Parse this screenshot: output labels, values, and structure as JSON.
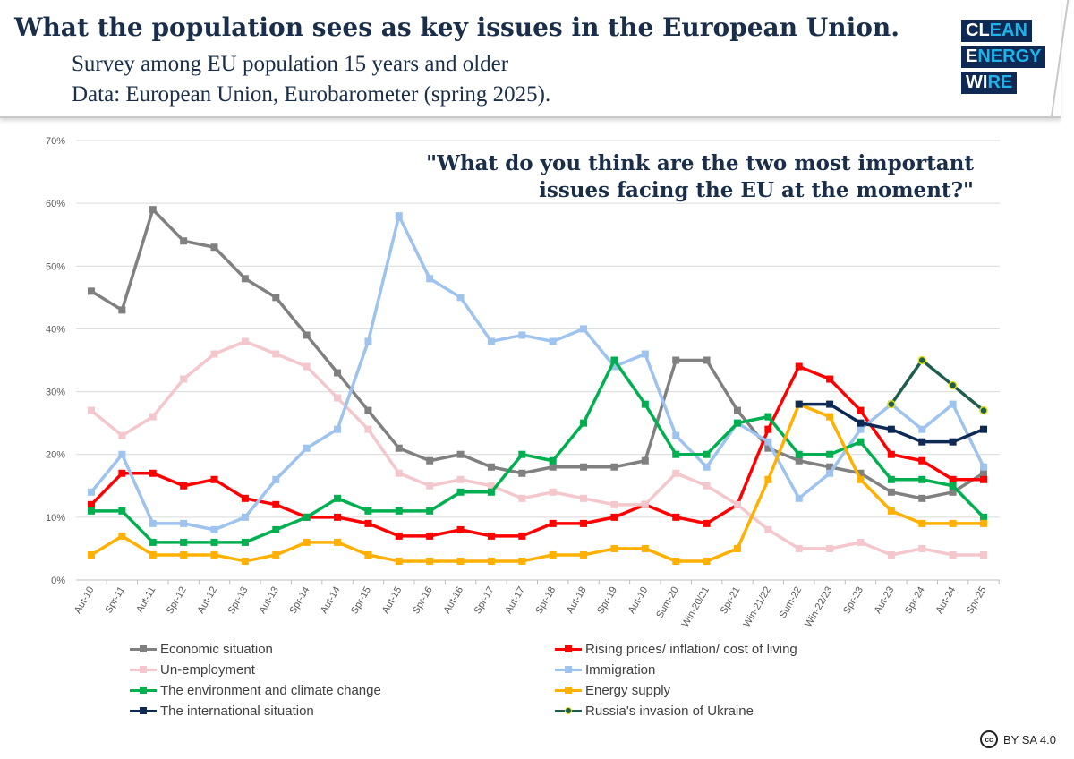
{
  "header": {
    "title": "What the population sees as key issues in the European Union.",
    "subtitle1": "Survey among EU population 15 years and older",
    "subtitle2": "Data: European Union, Eurobarometer (spring 2025)."
  },
  "logo": {
    "line1a": "CL",
    "line1b": "EAN",
    "line2a": "E",
    "line2b": "NERGY",
    "line3a": "WI",
    "line3b": "RE"
  },
  "license": {
    "icon": "cc",
    "label": "BY SA 4.0"
  },
  "chart_data": {
    "type": "line",
    "title": "\"What do you think are the two most important issues facing the EU at the moment?\"",
    "title_line1": "\"What do you think are the two most important",
    "title_line2": "issues facing the EU at the moment?\"",
    "ylim": [
      0,
      70
    ],
    "yticks": [
      "0%",
      "10%",
      "20%",
      "30%",
      "40%",
      "50%",
      "60%",
      "70%"
    ],
    "grid": true,
    "legend_placement": "bottom",
    "categories": [
      "Aut-10",
      "Spr-11",
      "Aut-11",
      "Spr-12",
      "Aut-12",
      "Spr-13",
      "Aut-13",
      "Spr-14",
      "Aut-14",
      "Spr-15",
      "Aut-15",
      "Spr-16",
      "Aut-16",
      "Spr-17",
      "Aut-17",
      "Spr-18",
      "Aut-18",
      "Spr-19",
      "Aut-19",
      "Sum-20",
      "Win-20/21",
      "Spr-21",
      "Win-21/22",
      "Sum-22",
      "Win-22/23",
      "Spr-23",
      "Aut-23",
      "Spr-24",
      "Aut-24",
      "Spr-25"
    ],
    "series": [
      {
        "name": "Economic situation",
        "color": "#808080",
        "values": [
          46,
          43,
          59,
          54,
          53,
          48,
          45,
          39,
          33,
          27,
          21,
          19,
          20,
          18,
          17,
          18,
          18,
          18,
          19,
          35,
          35,
          27,
          21,
          19,
          18,
          17,
          14,
          13,
          14,
          17
        ]
      },
      {
        "name": "Rising prices/ inflation/ cost of living",
        "color": "#ff0000",
        "values": [
          12,
          17,
          17,
          15,
          16,
          13,
          12,
          10,
          10,
          9,
          7,
          7,
          8,
          7,
          7,
          9,
          9,
          10,
          12,
          10,
          9,
          12,
          24,
          34,
          32,
          27,
          20,
          19,
          16,
          16
        ]
      },
      {
        "name": "Un-employment",
        "color": "#f4c7cc",
        "values": [
          27,
          23,
          26,
          32,
          36,
          38,
          36,
          34,
          29,
          24,
          17,
          15,
          16,
          15,
          13,
          14,
          13,
          12,
          12,
          17,
          15,
          12,
          8,
          5,
          5,
          6,
          4,
          5,
          4,
          4
        ]
      },
      {
        "name": "Immigration",
        "color": "#9dc3ee",
        "values": [
          14,
          20,
          9,
          9,
          8,
          10,
          16,
          21,
          24,
          38,
          58,
          48,
          45,
          38,
          39,
          38,
          40,
          34,
          36,
          23,
          18,
          25,
          22,
          13,
          17,
          24,
          28,
          24,
          28,
          18
        ]
      },
      {
        "name": "The environment and climate change",
        "color": "#00b050",
        "values": [
          11,
          11,
          6,
          6,
          6,
          6,
          8,
          10,
          13,
          11,
          11,
          11,
          14,
          14,
          20,
          19,
          25,
          35,
          28,
          20,
          20,
          25,
          26,
          20,
          20,
          22,
          16,
          16,
          15,
          10
        ]
      },
      {
        "name": "Energy supply",
        "color": "#ffb000",
        "values": [
          4,
          7,
          4,
          4,
          4,
          3,
          4,
          6,
          6,
          4,
          3,
          3,
          3,
          3,
          3,
          4,
          4,
          5,
          5,
          3,
          3,
          5,
          16,
          28,
          26,
          16,
          11,
          9,
          9,
          9
        ]
      },
      {
        "name": "The international situation",
        "color": "#0e2a54",
        "values": [
          null,
          null,
          null,
          null,
          null,
          null,
          null,
          null,
          null,
          null,
          null,
          null,
          null,
          null,
          null,
          null,
          null,
          null,
          null,
          null,
          null,
          null,
          null,
          28,
          28,
          25,
          24,
          22,
          22,
          24
        ]
      },
      {
        "name": "Russia's invasion of Ukraine",
        "color": "#1e5e4e",
        "marker_color": "#e0e020",
        "values": [
          null,
          null,
          null,
          null,
          null,
          null,
          null,
          null,
          null,
          null,
          null,
          null,
          null,
          null,
          null,
          null,
          null,
          null,
          null,
          null,
          null,
          null,
          null,
          null,
          null,
          null,
          28,
          35,
          31,
          27
        ]
      }
    ]
  }
}
